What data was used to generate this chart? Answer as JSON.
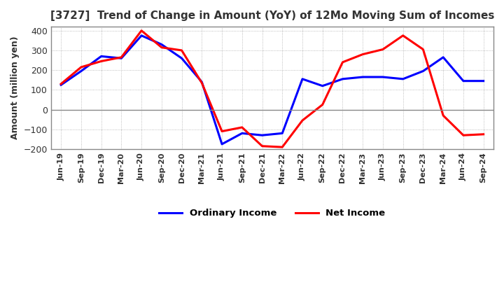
{
  "title": "[3727]  Trend of Change in Amount (YoY) of 12Mo Moving Sum of Incomes",
  "ylabel": "Amount (million yen)",
  "ylim": [
    -200,
    420
  ],
  "yticks": [
    -200,
    -100,
    0,
    100,
    200,
    300,
    400
  ],
  "x_labels": [
    "Jun-19",
    "Sep-19",
    "Dec-19",
    "Mar-20",
    "Jun-20",
    "Sep-20",
    "Dec-20",
    "Mar-21",
    "Jun-21",
    "Sep-21",
    "Dec-21",
    "Mar-22",
    "Jun-22",
    "Sep-22",
    "Dec-22",
    "Mar-23",
    "Jun-23",
    "Sep-23",
    "Dec-23",
    "Mar-24",
    "Jun-24",
    "Sep-24"
  ],
  "ordinary_income": [
    125,
    195,
    270,
    260,
    375,
    330,
    260,
    140,
    -175,
    -120,
    -130,
    -120,
    155,
    120,
    155,
    165,
    165,
    155,
    195,
    265,
    145,
    145
  ],
  "net_income": [
    130,
    215,
    245,
    265,
    400,
    315,
    300,
    135,
    -110,
    -90,
    -185,
    -190,
    -55,
    25,
    240,
    280,
    305,
    375,
    305,
    -30,
    -130,
    -125
  ],
  "ordinary_color": "#0000ff",
  "net_color": "#ff0000",
  "grid_color": "#aaaaaa",
  "background_color": "#ffffff",
  "title_color": "#333333",
  "spine_color": "#888888"
}
